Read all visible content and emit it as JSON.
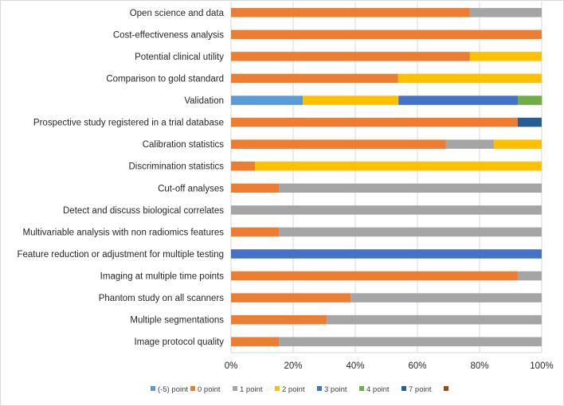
{
  "chart_data": {
    "type": "bar",
    "orientation": "horizontal",
    "stacked": true,
    "percent": true,
    "title": "",
    "xlabel": "",
    "ylabel": "",
    "xlim": [
      0,
      100
    ],
    "x_ticks": [
      "0%",
      "20%",
      "40%",
      "60%",
      "80%",
      "100%"
    ],
    "grid": true,
    "legend_position": "bottom",
    "categories": [
      "Open science and data",
      "Cost-effectiveness analysis",
      "Potential clinical utility",
      "Comparison to gold standard",
      "Validation",
      "Prospective study registered in a trial database",
      "Calibration statistics",
      "Discrimination statistics",
      "Cut-off analyses",
      "Detect and discuss biological correlates",
      "Multivariable analysis with non radiomics features",
      "Feature reduction or adjustment for multiple testing",
      "Imaging at multiple time points",
      "Phantom study on all scanners",
      "Multiple segmentations",
      "Image protocol quality"
    ],
    "series": [
      {
        "name": "(-5) point",
        "color": "#5b9bd5",
        "values": [
          0,
          0,
          0,
          0,
          23.1,
          0,
          0,
          0,
          0,
          0,
          0,
          0,
          0,
          0,
          0,
          0
        ]
      },
      {
        "name": "0 point",
        "color": "#ed7d31",
        "values": [
          76.9,
          100,
          76.9,
          53.8,
          0,
          92.3,
          69.2,
          7.7,
          15.4,
          0,
          15.4,
          0,
          92.3,
          38.5,
          30.8,
          15.4
        ]
      },
      {
        "name": "1 point",
        "color": "#a5a5a5",
        "values": [
          23.1,
          0,
          0,
          0,
          0,
          0,
          15.4,
          0,
          84.6,
          100,
          84.6,
          0,
          7.7,
          61.5,
          69.2,
          84.6
        ]
      },
      {
        "name": "2 point",
        "color": "#ffc000",
        "values": [
          0,
          0,
          23.1,
          46.2,
          30.8,
          0,
          15.4,
          92.3,
          0,
          0,
          0,
          0,
          0,
          0,
          0,
          0
        ]
      },
      {
        "name": "3 point",
        "color": "#4472c4",
        "values": [
          0,
          0,
          0,
          0,
          38.5,
          0,
          0,
          0,
          0,
          0,
          0,
          100,
          0,
          0,
          0,
          0
        ]
      },
      {
        "name": "4 point",
        "color": "#70ad47",
        "values": [
          0,
          0,
          0,
          0,
          7.7,
          0,
          0,
          0,
          0,
          0,
          0,
          0,
          0,
          0,
          0,
          0
        ]
      },
      {
        "name": "7 point",
        "color": "#255e91",
        "values": [
          0,
          0,
          0,
          0,
          0,
          7.7,
          0,
          0,
          0,
          0,
          0,
          0,
          0,
          0,
          0,
          0
        ]
      },
      {
        "name": "",
        "color": "#9e480e",
        "values": [
          0,
          0,
          0,
          0,
          0,
          0,
          0,
          0,
          0,
          0,
          0,
          0,
          0,
          0,
          0,
          0
        ]
      }
    ]
  }
}
